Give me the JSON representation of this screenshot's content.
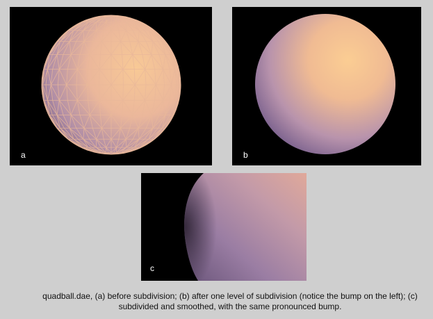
{
  "figure": {
    "panels": [
      {
        "id": "a",
        "label": "a"
      },
      {
        "id": "b",
        "label": "b"
      },
      {
        "id": "c",
        "label": "c"
      }
    ],
    "caption": "quadball.dae, (a) before subdivision; (b) after one level of subdivision (notice the bump on the left); (c) subdivided and smoothed, with the same pronounced bump."
  },
  "colors": {
    "background": "#cfcfcf",
    "panel_background": "#000000",
    "sphere_highlight": "#f6c690",
    "sphere_mid": "#c9a3b4",
    "sphere_shadow": "#8a6e9e",
    "wire": "#e7b697"
  }
}
